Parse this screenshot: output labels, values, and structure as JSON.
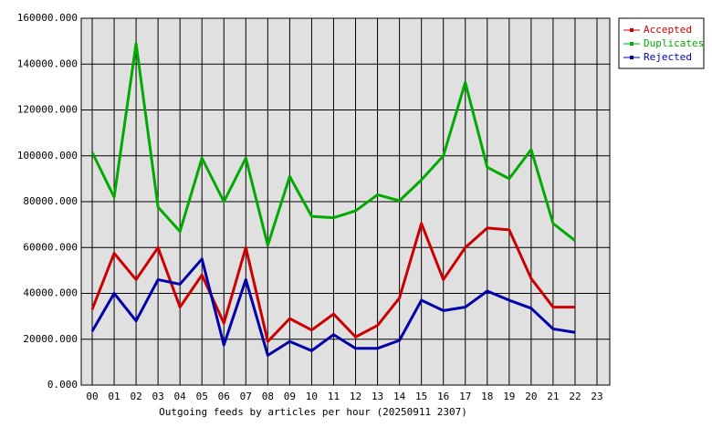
{
  "chart_data": {
    "type": "line",
    "xlabel": "Outgoing feeds by articles per hour (20250911 2307)",
    "categories": [
      "00",
      "01",
      "02",
      "03",
      "04",
      "05",
      "06",
      "07",
      "08",
      "09",
      "10",
      "11",
      "12",
      "13",
      "14",
      "15",
      "16",
      "17",
      "18",
      "19",
      "20",
      "21",
      "22",
      "23"
    ],
    "series": [
      {
        "name": "Accepted",
        "color": "#cc0000",
        "values": [
          33000,
          57500,
          46000,
          60000,
          34000,
          48000,
          27000,
          60000,
          19000,
          29000,
          24000,
          31000,
          21000,
          26000,
          38000,
          70500,
          46000,
          60000,
          68500,
          67700,
          46500,
          34000,
          34000,
          null
        ]
      },
      {
        "name": "Duplicates",
        "color": "#00aa00",
        "values": [
          101500,
          82000,
          149000,
          77600,
          67000,
          99000,
          80000,
          99000,
          61000,
          91000,
          73600,
          73000,
          76000,
          83000,
          80400,
          89500,
          100000,
          132000,
          95000,
          90000,
          102700,
          70500,
          63000,
          null
        ]
      },
      {
        "name": "Rejected",
        "color": "#0000aa",
        "values": [
          23500,
          40000,
          28000,
          46000,
          44000,
          55000,
          17500,
          46000,
          13000,
          19000,
          15000,
          22000,
          16000,
          16000,
          19500,
          37000,
          32500,
          34000,
          41000,
          37000,
          33500,
          24500,
          23000,
          null
        ]
      }
    ],
    "ylim": [
      0,
      160000
    ],
    "yticks": [
      {
        "value": 0,
        "label": "0.000"
      },
      {
        "value": 20000,
        "label": "20000.000"
      },
      {
        "value": 40000,
        "label": "40000.000"
      },
      {
        "value": 60000,
        "label": "60000.000"
      },
      {
        "value": 80000,
        "label": "80000.000"
      },
      {
        "value": 100000,
        "label": "100000.000"
      },
      {
        "value": 120000,
        "label": "120000.000"
      },
      {
        "value": 140000,
        "label": "140000.000"
      },
      {
        "value": 160000,
        "label": "160000.000"
      }
    ],
    "grid": true,
    "legend": "top-right"
  }
}
